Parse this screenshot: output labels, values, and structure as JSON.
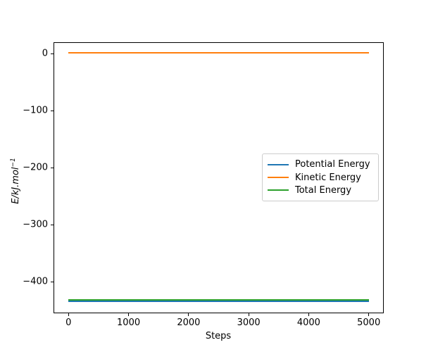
{
  "figure": {
    "background": "#ffffff"
  },
  "chart_data": {
    "type": "line",
    "title": "",
    "xlabel": "Steps",
    "ylabel": "E/kJ.mol⁻¹",
    "ylabel_base": "E/kJ.mol",
    "ylabel_sup": "−1",
    "xlim": [
      -250,
      5250
    ],
    "ylim": [
      -455,
      20
    ],
    "x_ticks": [
      0,
      1000,
      2000,
      3000,
      4000,
      5000
    ],
    "y_ticks": [
      0,
      -100,
      -200,
      -300,
      -400
    ],
    "grid": false,
    "legend_position": "center right",
    "x": [
      0,
      5000
    ],
    "series": [
      {
        "name": "Potential Energy",
        "color": "#1f77b4",
        "values": [
          -433.5,
          -433.5
        ]
      },
      {
        "name": "Kinetic Energy",
        "color": "#ff7f0e",
        "values": [
          1.5,
          1.5
        ]
      },
      {
        "name": "Total Energy",
        "color": "#2ca02c",
        "values": [
          -432.0,
          -432.0
        ]
      }
    ]
  }
}
